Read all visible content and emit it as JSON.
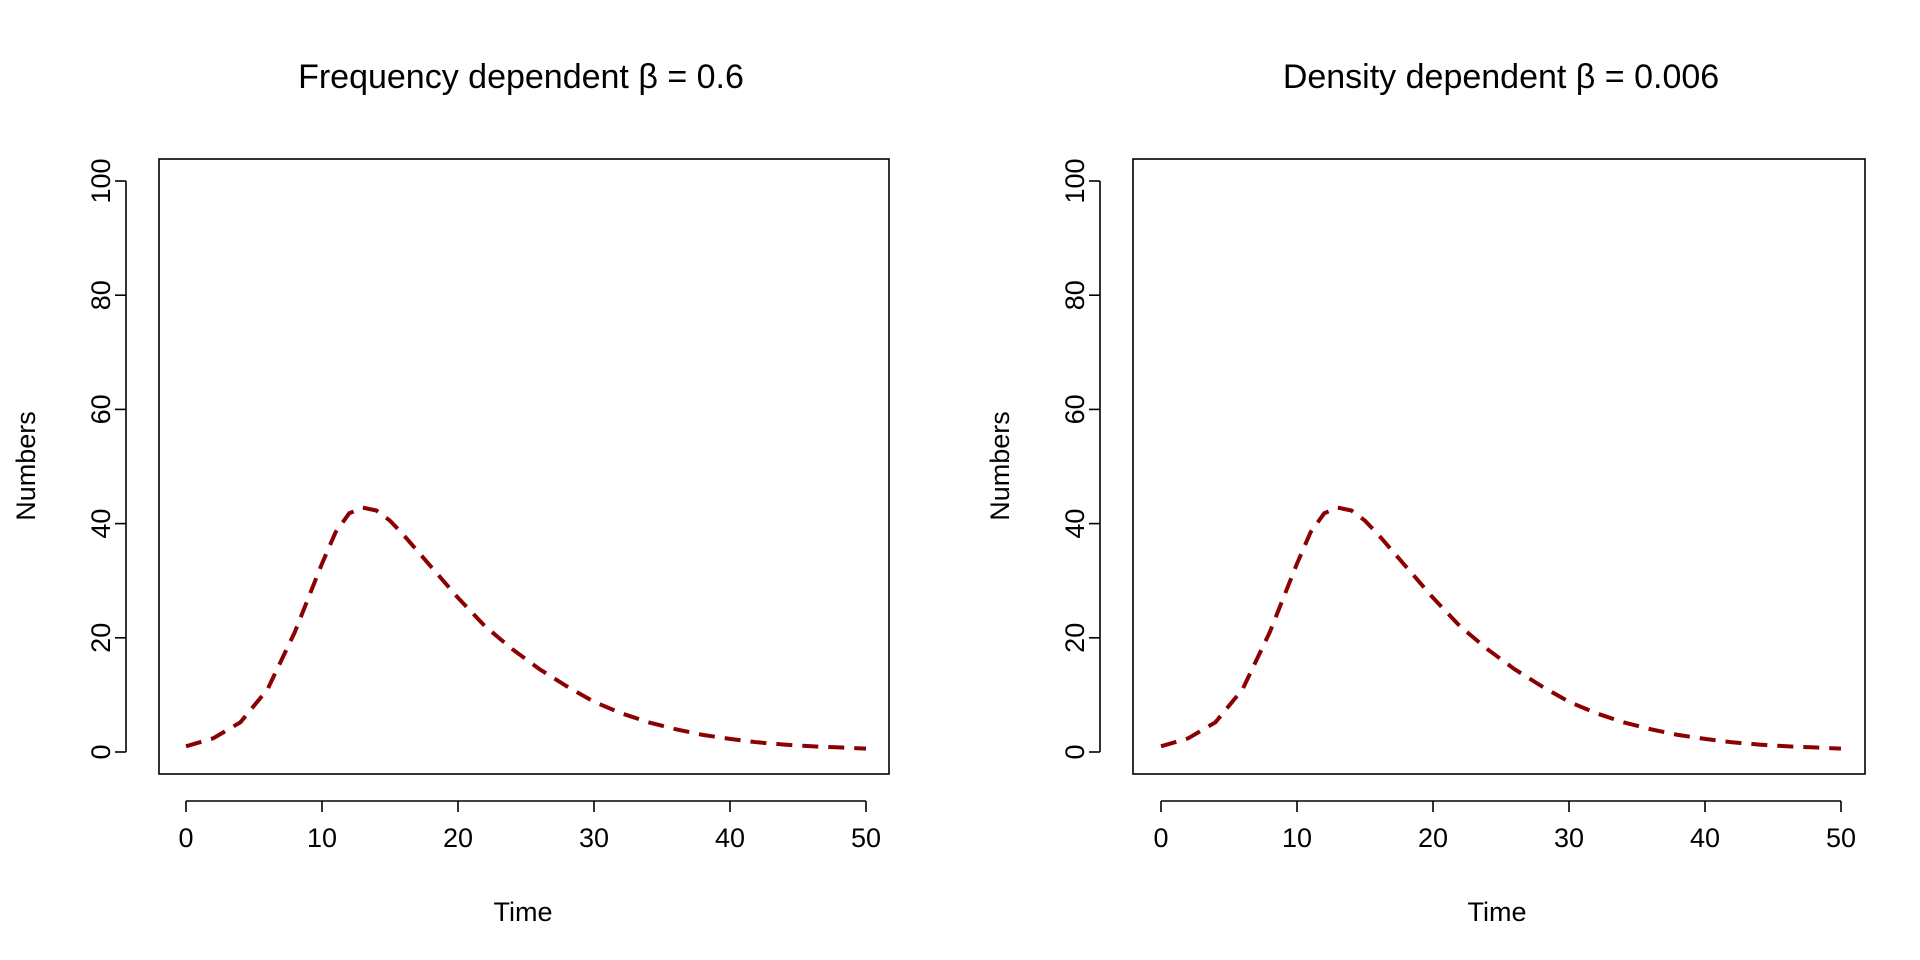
{
  "chart_data": [
    {
      "type": "line",
      "title": "Frequency dependent β = 0.6",
      "xlabel": "Time",
      "ylabel": "Numbers",
      "xlim": [
        0,
        50
      ],
      "ylim": [
        0,
        100
      ],
      "x_ticks": [
        "0",
        "10",
        "20",
        "30",
        "40",
        "50"
      ],
      "y_ticks": [
        "0",
        "20",
        "40",
        "60",
        "80",
        "100"
      ],
      "grid": false,
      "series": [
        {
          "color": "#8b0000",
          "linestyle": "dashed",
          "x": [
            0,
            2,
            4,
            6,
            8,
            10,
            11,
            12,
            13,
            14,
            15,
            16,
            18,
            20,
            22,
            24,
            26,
            28,
            30,
            32,
            34,
            36,
            38,
            40,
            42,
            44,
            46,
            48,
            50
          ],
          "y": [
            1,
            2.4,
            5.2,
            11,
            21,
            33,
            38.5,
            41.8,
            42.8,
            42.3,
            40.5,
            38,
            32.5,
            27,
            22,
            18,
            14.5,
            11.5,
            8.8,
            6.8,
            5.2,
            4,
            3,
            2.3,
            1.7,
            1.3,
            1,
            0.8,
            0.6
          ]
        }
      ]
    },
    {
      "type": "line",
      "title": "Density dependent β = 0.006",
      "xlabel": "Time",
      "ylabel": "Numbers",
      "xlim": [
        0,
        50
      ],
      "ylim": [
        0,
        100
      ],
      "x_ticks": [
        "0",
        "10",
        "20",
        "30",
        "40",
        "50"
      ],
      "y_ticks": [
        "0",
        "20",
        "40",
        "60",
        "80",
        "100"
      ],
      "grid": false,
      "series": [
        {
          "color": "#8b0000",
          "linestyle": "dashed",
          "x": [
            0,
            2,
            4,
            6,
            8,
            10,
            11,
            12,
            13,
            14,
            15,
            16,
            18,
            20,
            22,
            24,
            26,
            28,
            30,
            32,
            34,
            36,
            38,
            40,
            42,
            44,
            46,
            48,
            50
          ],
          "y": [
            1,
            2.4,
            5.2,
            11,
            21,
            33,
            38.5,
            41.8,
            42.8,
            42.3,
            40.5,
            38,
            32.5,
            27,
            22,
            18,
            14.5,
            11.5,
            8.8,
            6.8,
            5.2,
            4,
            3,
            2.3,
            1.7,
            1.3,
            1,
            0.8,
            0.6
          ]
        }
      ]
    }
  ]
}
